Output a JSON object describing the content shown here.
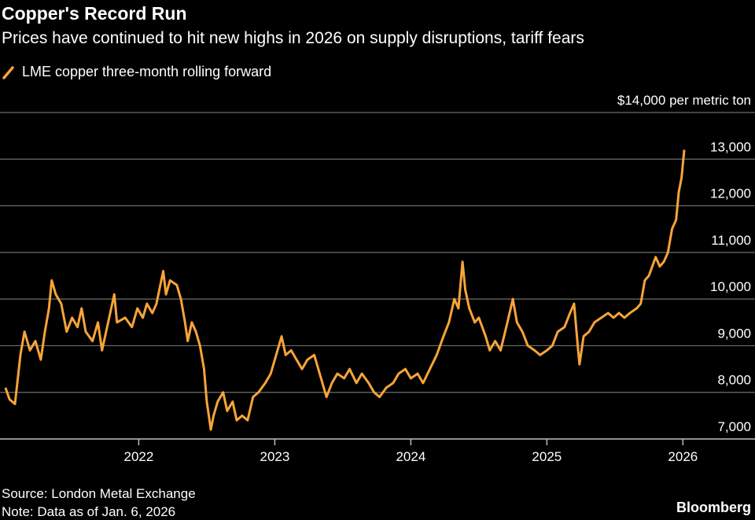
{
  "chart_data": {
    "type": "line",
    "title": "Copper's Record Run",
    "subtitle": "Prices have continued to hit new highs in 2026 on supply disruptions, tariff fears",
    "source": "Source: London Metal Exchange",
    "note": "Note: Data as of Jan. 6, 2026",
    "brand": "Bloomberg",
    "grid": true,
    "xlim": [
      2020.98,
      2026.53
    ],
    "xticks": [
      2022,
      2023,
      2024,
      2025,
      2026
    ],
    "ylim": [
      7000,
      14000
    ],
    "yticks": [
      {
        "value": 7000,
        "label": "7,000"
      },
      {
        "value": 8000,
        "label": "8,000"
      },
      {
        "value": 9000,
        "label": "9,000"
      },
      {
        "value": 10000,
        "label": "10,000"
      },
      {
        "value": 11000,
        "label": "11,000"
      },
      {
        "value": 12000,
        "label": "12,000"
      },
      {
        "value": 13000,
        "label": "13,000"
      },
      {
        "value": 14000,
        "label": "$14,000 per metric ton"
      }
    ],
    "x": [
      2021.02,
      2021.05,
      2021.09,
      2021.13,
      2021.16,
      2021.2,
      2021.24,
      2021.28,
      2021.31,
      2021.34,
      2021.36,
      2021.39,
      2021.43,
      2021.47,
      2021.51,
      2021.55,
      2021.58,
      2021.61,
      2021.66,
      2021.7,
      2021.73,
      2021.79,
      2021.82,
      2021.84,
      2021.9,
      2021.95,
      2021.99,
      2022.03,
      2022.06,
      2022.1,
      2022.13,
      2022.18,
      2022.2,
      2022.23,
      2022.28,
      2022.31,
      2022.34,
      2022.36,
      2022.39,
      2022.42,
      2022.45,
      2022.48,
      2022.5,
      2022.53,
      2022.55,
      2022.58,
      2022.62,
      2022.65,
      2022.69,
      2022.72,
      2022.76,
      2022.8,
      2022.84,
      2022.88,
      2022.93,
      2022.97,
      2023.01,
      2023.05,
      2023.08,
      2023.12,
      2023.16,
      2023.2,
      2023.24,
      2023.29,
      2023.34,
      2023.38,
      2023.42,
      2023.46,
      2023.51,
      2023.55,
      2023.6,
      2023.64,
      2023.69,
      2023.73,
      2023.77,
      2023.82,
      2023.87,
      2023.91,
      2023.96,
      2024.0,
      2024.05,
      2024.09,
      2024.14,
      2024.19,
      2024.24,
      2024.28,
      2024.32,
      2024.35,
      2024.38,
      2024.4,
      2024.43,
      2024.47,
      2024.5,
      2024.55,
      2024.58,
      2024.62,
      2024.66,
      2024.71,
      2024.75,
      2024.78,
      2024.82,
      2024.86,
      2024.91,
      2024.95,
      2025.0,
      2025.04,
      2025.08,
      2025.13,
      2025.17,
      2025.2,
      2025.23,
      2025.24,
      2025.27,
      2025.31,
      2025.35,
      2025.4,
      2025.45,
      2025.49,
      2025.53,
      2025.57,
      2025.61,
      2025.66,
      2025.69,
      2025.72,
      2025.75,
      2025.8,
      2025.83,
      2025.86,
      2025.89,
      2025.92,
      2025.95,
      2025.97,
      2025.99,
      2026.01
    ],
    "series": [
      {
        "name": "LME copper three-month rolling forward",
        "color": "#f7a43a",
        "values": [
          8100,
          7850,
          7750,
          8800,
          9300,
          8900,
          9100,
          8700,
          9300,
          9800,
          10400,
          10100,
          9900,
          9300,
          9600,
          9400,
          9800,
          9300,
          9100,
          9500,
          8900,
          9700,
          10100,
          9500,
          9600,
          9400,
          9800,
          9600,
          9900,
          9700,
          9900,
          10600,
          10100,
          10400,
          10300,
          10000,
          9500,
          9100,
          9500,
          9300,
          9000,
          8500,
          7800,
          7200,
          7500,
          7800,
          8000,
          7600,
          7800,
          7400,
          7500,
          7400,
          7900,
          8000,
          8200,
          8400,
          8800,
          9200,
          8800,
          8900,
          8700,
          8500,
          8700,
          8800,
          8300,
          7900,
          8200,
          8400,
          8300,
          8500,
          8200,
          8400,
          8200,
          8000,
          7900,
          8100,
          8200,
          8400,
          8500,
          8300,
          8400,
          8200,
          8500,
          8800,
          9200,
          9500,
          10000,
          9800,
          10800,
          10200,
          9800,
          9500,
          9600,
          9200,
          8900,
          9100,
          8900,
          9500,
          10000,
          9500,
          9300,
          9000,
          8900,
          8800,
          8900,
          9000,
          9300,
          9400,
          9700,
          9900,
          8900,
          8600,
          9200,
          9300,
          9500,
          9600,
          9700,
          9600,
          9700,
          9600,
          9700,
          9800,
          9900,
          10400,
          10500,
          10900,
          10700,
          10800,
          11000,
          11500,
          11700,
          12300,
          12600,
          13200
        ]
      }
    ]
  }
}
